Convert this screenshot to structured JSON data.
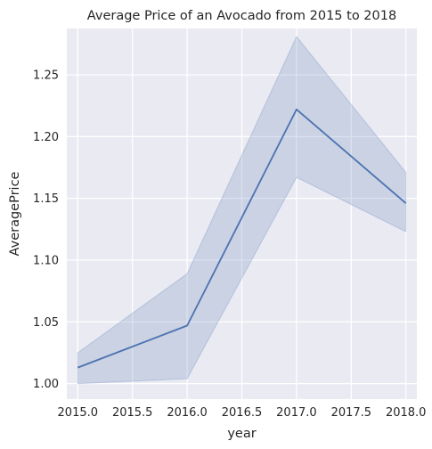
{
  "chart_data": {
    "type": "line",
    "title": "Average Price of an Avocado from 2015 to 2018",
    "xlabel": "year",
    "ylabel": "AveragePrice",
    "xlim": [
      2014.9,
      2018.1
    ],
    "ylim": [
      0.9875,
      1.2875
    ],
    "xticks": [
      "2015.0",
      "2015.5",
      "2016.0",
      "2016.5",
      "2017.0",
      "2017.5",
      "2018.0"
    ],
    "yticks": [
      "1.00",
      "1.05",
      "1.10",
      "1.15",
      "1.20",
      "1.25"
    ],
    "grid": true,
    "background": "#eaeaf2",
    "line_color": "#4c72b0",
    "band_color": "#4c72b0",
    "series": [
      {
        "x": [
          2015,
          2016,
          2017,
          2018
        ],
        "values": [
          1.013,
          1.047,
          1.222,
          1.146
        ],
        "ci_lower": [
          1.0,
          1.004,
          1.167,
          1.123
        ],
        "ci_upper": [
          1.025,
          1.089,
          1.281,
          1.171
        ]
      }
    ]
  }
}
